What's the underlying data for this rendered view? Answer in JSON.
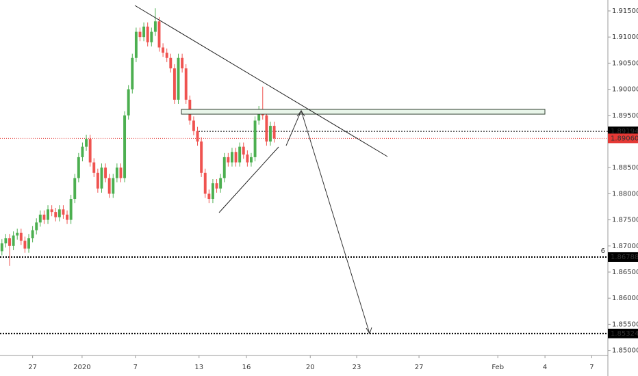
{
  "chart_data": {
    "type": "candlestick",
    "up_color": "#4caf50",
    "down_color": "#ef5350",
    "open": [
      1.869,
      1.8705,
      1.8715,
      1.87,
      1.872,
      1.8725,
      1.871,
      1.8695,
      1.8715,
      1.873,
      1.8745,
      1.876,
      1.875,
      1.877,
      1.8765,
      1.8755,
      1.877,
      1.876,
      1.875,
      1.879,
      1.883,
      1.887,
      1.889,
      1.8905,
      1.886,
      1.884,
      1.881,
      1.885,
      1.883,
      1.88,
      1.883,
      1.885,
      1.883,
      1.895,
      1.9,
      1.906,
      1.911,
      1.91,
      1.912,
      1.909,
      1.911,
      1.913,
      1.908,
      1.907,
      1.906,
      1.904,
      1.898,
      1.906,
      1.904,
      1.898,
      1.894,
      1.892,
      1.89,
      1.884,
      1.88,
      1.879,
      1.882,
      1.881,
      1.883,
      1.887,
      1.886,
      1.888,
      1.886,
      1.889,
      1.8875,
      1.886,
      1.887,
      1.894,
      1.896,
      1.895,
      1.89,
      1.893
    ],
    "high": [
      1.8713,
      1.8723,
      1.8723,
      1.8728,
      1.8733,
      1.8733,
      1.8718,
      1.8723,
      1.8738,
      1.8753,
      1.8768,
      1.8768,
      1.8778,
      1.8778,
      1.8773,
      1.8778,
      1.8778,
      1.8768,
      1.8798,
      1.8838,
      1.8878,
      1.8898,
      1.8913,
      1.8913,
      1.8868,
      1.8848,
      1.8858,
      1.8858,
      1.8838,
      1.8838,
      1.8858,
      1.8858,
      1.8958,
      1.9008,
      1.9068,
      1.9118,
      1.9118,
      1.9128,
      1.9128,
      1.9118,
      1.9155,
      1.9138,
      1.9088,
      1.9078,
      1.9068,
      1.9048,
      1.9068,
      1.9068,
      1.9048,
      1.8988,
      1.8948,
      1.8928,
      1.8908,
      1.8848,
      1.8808,
      1.8828,
      1.8828,
      1.8838,
      1.8878,
      1.8878,
      1.8888,
      1.8888,
      1.8898,
      1.8898,
      1.8883,
      1.8878,
      1.8948,
      1.8968,
      1.9005,
      1.8958,
      1.8938,
      1.8938
    ],
    "low": [
      1.8682,
      1.8697,
      1.8662,
      1.8692,
      1.8712,
      1.8702,
      1.8687,
      1.8687,
      1.8707,
      1.8722,
      1.8737,
      1.8742,
      1.8742,
      1.8757,
      1.8747,
      1.8747,
      1.8752,
      1.8742,
      1.8742,
      1.8782,
      1.8822,
      1.8862,
      1.8882,
      1.8852,
      1.8832,
      1.8802,
      1.8802,
      1.8822,
      1.8792,
      1.8792,
      1.8822,
      1.8822,
      1.8822,
      1.8942,
      1.8992,
      1.9052,
      1.9092,
      1.9092,
      1.9082,
      1.9082,
      1.9102,
      1.9072,
      1.9062,
      1.9052,
      1.9032,
      1.8972,
      1.8972,
      1.9032,
      1.8972,
      1.8932,
      1.8912,
      1.8892,
      1.8832,
      1.8792,
      1.8782,
      1.8782,
      1.8802,
      1.8802,
      1.8822,
      1.8852,
      1.8852,
      1.8852,
      1.8852,
      1.8867,
      1.8852,
      1.8852,
      1.8862,
      1.8932,
      1.8942,
      1.8892,
      1.8892,
      1.8898
    ],
    "close": [
      1.8705,
      1.8715,
      1.87,
      1.872,
      1.8725,
      1.871,
      1.8695,
      1.8715,
      1.873,
      1.8745,
      1.876,
      1.875,
      1.877,
      1.8765,
      1.8755,
      1.877,
      1.876,
      1.875,
      1.879,
      1.883,
      1.887,
      1.889,
      1.8905,
      1.886,
      1.884,
      1.881,
      1.885,
      1.883,
      1.88,
      1.883,
      1.885,
      1.883,
      1.895,
      1.9,
      1.906,
      1.911,
      1.91,
      1.912,
      1.909,
      1.911,
      1.913,
      1.908,
      1.907,
      1.906,
      1.904,
      1.898,
      1.906,
      1.904,
      1.898,
      1.894,
      1.892,
      1.89,
      1.884,
      1.88,
      1.879,
      1.882,
      1.881,
      1.883,
      1.887,
      1.886,
      1.888,
      1.886,
      1.889,
      1.8875,
      1.886,
      1.887,
      1.894,
      1.896,
      1.895,
      1.89,
      1.893,
      1.8906
    ],
    "xlim": [
      -0.5,
      158
    ],
    "xticks": [
      {
        "value": 8,
        "label": "27"
      },
      {
        "value": 20.9,
        "label": "2020"
      },
      {
        "value": 34.8,
        "label": "7"
      },
      {
        "value": 51.4,
        "label": "13"
      },
      {
        "value": 63.75,
        "label": "16"
      },
      {
        "value": 80.4,
        "label": "20"
      },
      {
        "value": 92.5,
        "label": "23"
      },
      {
        "value": 108.75,
        "label": "27"
      },
      {
        "value": 129.3,
        "label": "Feb"
      },
      {
        "value": 141.6,
        "label": "4"
      },
      {
        "value": 153.8,
        "label": "7"
      }
    ],
    "ylim": [
      1.84903,
      1.91709
    ],
    "yticks": [
      {
        "value": 1.915,
        "label": "1.91500"
      },
      {
        "value": 1.91,
        "label": "1.91000"
      },
      {
        "value": 1.905,
        "label": "1.90500"
      },
      {
        "value": 1.9,
        "label": "1.90000"
      },
      {
        "value": 1.895,
        "label": "1.89500"
      },
      {
        "value": 1.885,
        "label": "1.88500"
      },
      {
        "value": 1.88,
        "label": "1.88000"
      },
      {
        "value": 1.875,
        "label": "1.87500"
      },
      {
        "value": 1.87,
        "label": "1.87000"
      },
      {
        "value": 1.865,
        "label": "1.86500"
      },
      {
        "value": 1.86,
        "label": "1.86000"
      },
      {
        "value": 1.855,
        "label": "1.85500"
      },
      {
        "value": 1.85,
        "label": "1.85000"
      }
    ],
    "price_lines": {
      "values": [
        1.89194,
        1.8906,
        1.86788,
        1.85324
      ],
      "value_labels": [
        "1.89194",
        "1.89060",
        "1.86788",
        "1.85324"
      ],
      "colors": [
        "#000000",
        "#e53935",
        "#000000",
        "#000000"
      ]
    },
    "annotation": "6"
  }
}
